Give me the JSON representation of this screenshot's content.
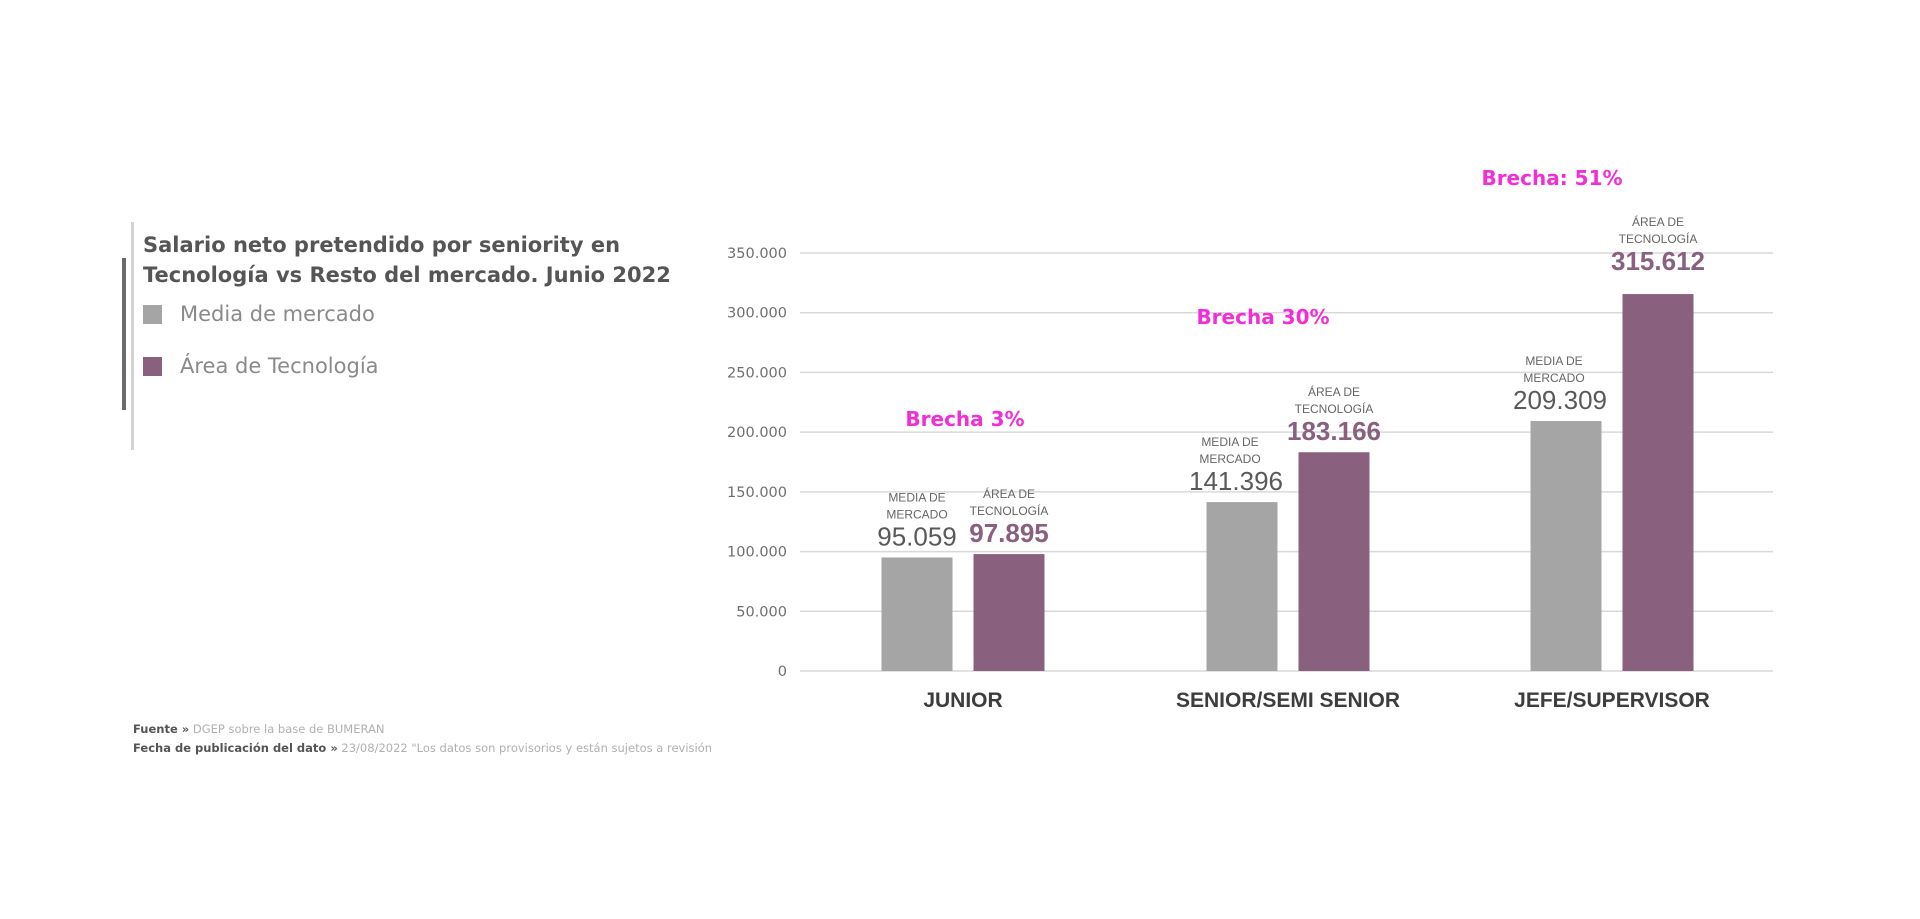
{
  "legend": {
    "items": [
      {
        "label": "Media de mercado",
        "color": "#a5a5a5"
      },
      {
        "label": "Área de Tecnología",
        "color": "#89607e"
      }
    ]
  },
  "footnotes": {
    "source_label": "Fuente »",
    "source_text": "DGEP sobre la base de BUMERAN",
    "date_label": "Fecha de publicación del dato »",
    "date_text": "23/08/2022 \"Los datos son provisorios y están sujetos a revisión"
  },
  "chart_data": {
    "type": "bar",
    "title": "Salario neto pretendido por seniority en Tecnología vs Resto del mercado. Junio 2022",
    "categories": [
      "JUNIOR",
      "SENIOR/SEMI SENIOR",
      "JEFE/SUPERVISOR"
    ],
    "series": [
      {
        "name": "Media de mercado",
        "color": "#a5a5a5",
        "values": [
          95059,
          141396,
          209309
        ],
        "value_labels": [
          "95.059",
          "141.396",
          "209.309"
        ],
        "bar_caption": [
          "MEDIA DE",
          "MERCADO"
        ]
      },
      {
        "name": "Área de Tecnología",
        "color": "#89607e",
        "values": [
          97895,
          183166,
          315612
        ],
        "value_labels": [
          "97.895",
          "183.166",
          "315.612"
        ],
        "bar_caption": [
          "ÁREA DE",
          "TECNOLOGÍA"
        ]
      }
    ],
    "gap_labels": [
      "Brecha 3%",
      "Brecha 30%",
      "Brecha: 51%"
    ],
    "y_ticks": [
      0,
      50000,
      100000,
      150000,
      200000,
      250000,
      300000,
      350000
    ],
    "y_tick_labels": [
      "0",
      "50.000",
      "100.000",
      "150.000",
      "200.000",
      "250.000",
      "300.000",
      "350.000"
    ],
    "ylim": [
      0,
      350000
    ],
    "grid": true,
    "legend_position": "left",
    "xlabel": "",
    "ylabel": ""
  }
}
